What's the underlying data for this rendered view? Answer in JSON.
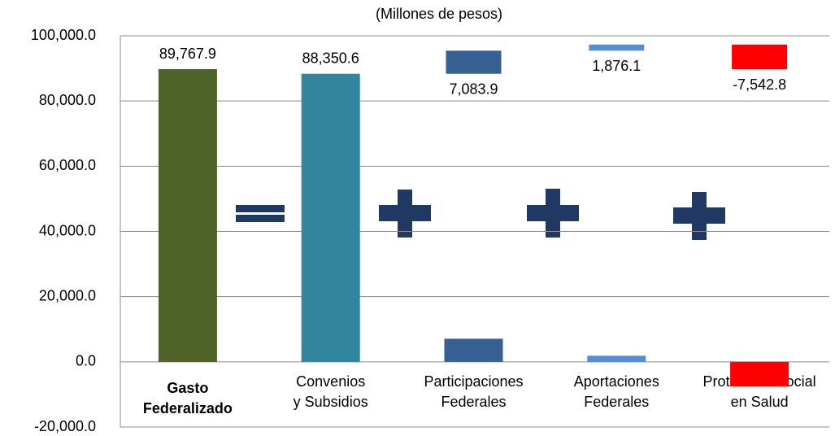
{
  "chart_data": {
    "type": "bar",
    "subtitle": "(Millones de pesos)",
    "categories": [
      [
        "Gasto",
        "Federalizado"
      ],
      [
        "Convenios",
        "y Subsidios"
      ],
      [
        "Participaciones",
        "Federales"
      ],
      [
        "Aportaciones",
        "Federales"
      ],
      [
        "Protección Social",
        "en Salud"
      ]
    ],
    "values": [
      89767.9,
      88350.6,
      7083.9,
      1876.1,
      -7542.8
    ],
    "value_labels": [
      "89,767.9",
      "88,350.6",
      "7,083.9",
      "1,876.1",
      "-7,542.8"
    ],
    "colors": [
      "#4f6228",
      "#31859c",
      "#376092",
      "#558ed5",
      "#ff0000"
    ],
    "ylim": [
      -20000,
      100000
    ],
    "yticks": [
      {
        "value": -20000,
        "label": "-20,000.0"
      },
      {
        "value": 0,
        "label": "0.0"
      },
      {
        "value": 20000,
        "label": "20,000.0"
      },
      {
        "value": 40000,
        "label": "40,000.0"
      },
      {
        "value": 60000,
        "label": "60,000.0"
      },
      {
        "value": 80000,
        "label": "80,000.0"
      },
      {
        "value": 100000,
        "label": "100,000.0"
      }
    ],
    "grid": true
  }
}
